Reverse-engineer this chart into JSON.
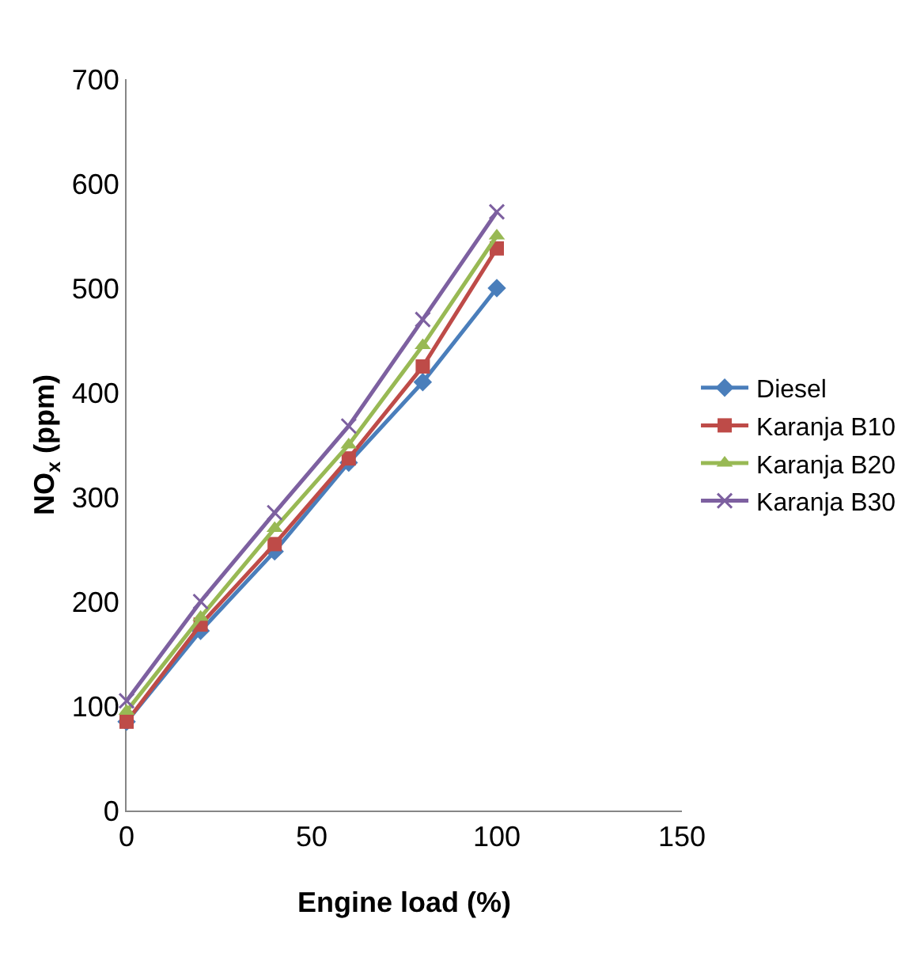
{
  "chart_data": {
    "type": "line",
    "xlabel": "Engine load (%)",
    "ylabel": "NO$_{x}$ (ppm)",
    "x": [
      0,
      20,
      40,
      60,
      80,
      100
    ],
    "series": [
      {
        "name": "Diesel",
        "color": "#4a7ebb",
        "marker": "diamond",
        "values": [
          85,
          172,
          248,
          333,
          410,
          500
        ]
      },
      {
        "name": "Karanja B10",
        "color": "#be4b48",
        "marker": "square",
        "values": [
          85,
          178,
          255,
          337,
          425,
          538
        ]
      },
      {
        "name": "Karanja B20",
        "color": "#98b954",
        "marker": "triangle",
        "values": [
          95,
          185,
          270,
          350,
          445,
          550
        ]
      },
      {
        "name": "Karanja B30",
        "color": "#7d60a0",
        "marker": "cross",
        "values": [
          105,
          200,
          285,
          368,
          470,
          573
        ]
      }
    ],
    "xlim": [
      0,
      150
    ],
    "xticks": [
      0,
      50,
      100,
      150
    ],
    "ylim": [
      0,
      700
    ],
    "yticks": [
      0,
      100,
      200,
      300,
      400,
      500,
      600,
      700
    ],
    "grid": false,
    "legend": "right"
  }
}
